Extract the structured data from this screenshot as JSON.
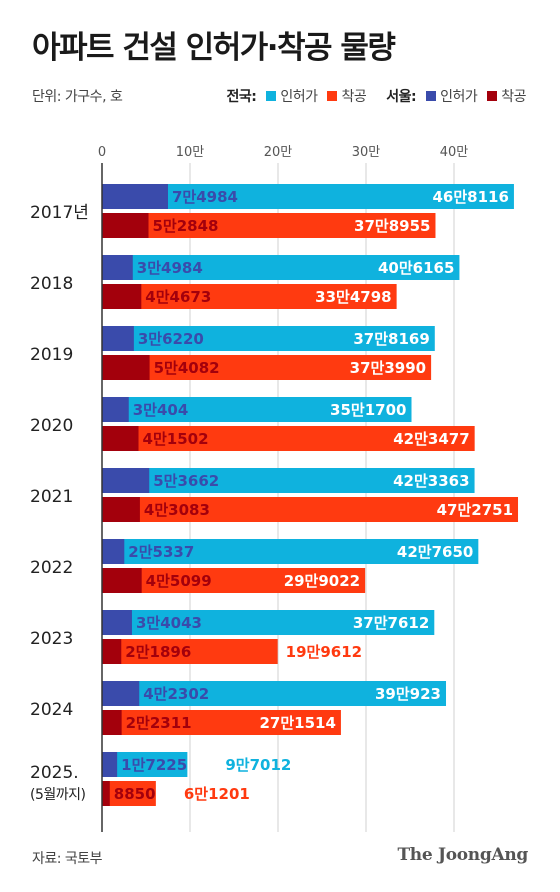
{
  "title": "아파트 건설 인허가·착공 물량",
  "unit": "단위: 가구수, 호",
  "legend": {
    "national_label": "전국:",
    "seoul_label": "서울:",
    "permit_label": "인허가",
    "start_label": "착공"
  },
  "source": "자료: 국토부",
  "brand": "The JoongAng",
  "colors": {
    "national_permit": "#0fb2de",
    "national_start": "#ff3a10",
    "seoul_permit": "#3a4bab",
    "seoul_start": "#a3000c",
    "grid": "#d0d0d0",
    "axis": "#333333"
  },
  "chart_data": {
    "type": "bar",
    "orientation": "horizontal",
    "xlim": [
      0,
      470000
    ],
    "x_ticks": [
      0,
      100000,
      200000,
      300000,
      400000
    ],
    "x_tick_labels": [
      "0",
      "10만",
      "20만",
      "30만",
      "40만"
    ],
    "categories": [
      [
        "2017년"
      ],
      [
        "2018"
      ],
      [
        "2019"
      ],
      [
        "2020"
      ],
      [
        "2021"
      ],
      [
        "2022"
      ],
      [
        "2023"
      ],
      [
        "2024"
      ],
      [
        "2025.",
        "(5월까지)"
      ]
    ],
    "series": [
      {
        "name": "전국 인허가",
        "values": [
          468116,
          406165,
          378169,
          351700,
          423363,
          427650,
          377612,
          390923,
          97012
        ],
        "labels": [
          "46만8116",
          "40만6165",
          "37만8169",
          "35만1700",
          "42만3363",
          "42만7650",
          "37만7612",
          "39만923",
          "9만7012"
        ]
      },
      {
        "name": "전국 착공",
        "values": [
          378955,
          334798,
          373990,
          423477,
          472751,
          299022,
          199612,
          271514,
          61201
        ],
        "labels": [
          "37만8955",
          "33만4798",
          "37만3990",
          "42만3477",
          "47만2751",
          "29만9022",
          "19만9612",
          "27만1514",
          "6만1201"
        ]
      },
      {
        "name": "서울 인허가",
        "values": [
          74984,
          34984,
          36220,
          30404,
          53662,
          25337,
          34043,
          42302,
          17225
        ],
        "labels": [
          "7만4984",
          "3만4984",
          "3만6220",
          "3만404",
          "5만3662",
          "2만5337",
          "3만4043",
          "4만2302",
          "1만7225"
        ]
      },
      {
        "name": "서울 착공",
        "values": [
          52848,
          44673,
          54082,
          41502,
          43083,
          45099,
          21896,
          22311,
          8850
        ],
        "labels": [
          "5만2848",
          "4만4673",
          "5만4082",
          "4만1502",
          "4만3083",
          "4만5099",
          "2만1896",
          "2만2311",
          "8850"
        ]
      }
    ]
  }
}
